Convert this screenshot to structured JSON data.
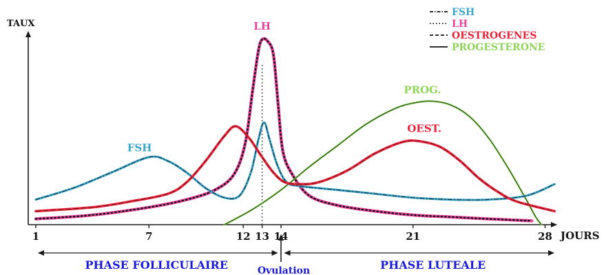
{
  "chart_data": {
    "type": "line",
    "ylabel": "TAUX",
    "xlabel": "JOURS",
    "xlim": [
      0.6,
      28.6
    ],
    "ylim": [
      0,
      100
    ],
    "x_ticks": [
      1,
      7,
      12,
      13,
      14,
      21,
      28
    ],
    "grid": false,
    "legend_position": "top-right",
    "legend": [
      {
        "label": "FSH",
        "color": "#3aa7c9",
        "line_style": "dash-dot"
      },
      {
        "label": "LH",
        "color": "#e8439a",
        "line_style": "dotted"
      },
      {
        "label": "OESTROGENES",
        "color": "#e8243a",
        "line_style": "dashed"
      },
      {
        "label": "PROGESTERONE",
        "color": "#8fd65a",
        "line_style": "solid"
      }
    ],
    "series": [
      {
        "key": "fsh",
        "curve_label": "FSH",
        "color": "#3aa7c9",
        "x": [
          1,
          3,
          5,
          7,
          8,
          9,
          10,
          11,
          11.8,
          12.4,
          12.8,
          13.1,
          13.4,
          13.8,
          14.3,
          15,
          17,
          19,
          21,
          23,
          25,
          27,
          28.5
        ],
        "y": [
          13,
          19,
          27,
          35,
          33,
          27,
          19,
          14,
          15,
          27,
          44,
          53,
          44,
          31,
          22,
          20,
          18,
          16,
          14,
          13,
          13,
          15,
          21
        ]
      },
      {
        "key": "lh",
        "curve_label": "LH",
        "color": "#e8439a",
        "x": [
          1,
          4,
          7,
          9,
          10.5,
          11.5,
          12.1,
          12.5,
          12.8,
          13,
          13.3,
          13.6,
          13.85,
          14.1,
          14.6,
          15.5,
          17,
          19,
          21,
          23,
          25,
          27.3
        ],
        "y": [
          3,
          5,
          9,
          13,
          18,
          26,
          42,
          70,
          90,
          96,
          95,
          88,
          62,
          38,
          26,
          15,
          10,
          7,
          5,
          4,
          3,
          2
        ]
      },
      {
        "key": "oest",
        "curve_label": "OEST.",
        "color": "#e8243a",
        "x": [
          1,
          4,
          6,
          8,
          9,
          10,
          11,
          11.6,
          12.3,
          13,
          13.6,
          14.2,
          15,
          16,
          17.5,
          19,
          20.5,
          21.5,
          22.5,
          23.5,
          24.5,
          25.5,
          26.5,
          28.5
        ],
        "y": [
          7,
          9,
          12,
          16,
          22,
          33,
          46,
          51,
          45,
          35,
          27,
          22,
          21,
          22,
          28,
          37,
          43,
          43,
          40,
          33,
          24,
          17,
          12,
          7
        ]
      },
      {
        "key": "prog",
        "curve_label": "PROG.",
        "color": "#8fd65a",
        "x": [
          11,
          12.5,
          14,
          15.5,
          17,
          18.5,
          20,
          21,
          22,
          23,
          24,
          25,
          26,
          27,
          27.5,
          27.8
        ],
        "y": [
          0,
          8,
          18,
          30,
          41,
          52,
          60,
          63,
          64,
          62,
          56,
          45,
          30,
          13,
          4,
          0
        ]
      }
    ],
    "annotations": {
      "ovulation_day": 14,
      "lh_peak_day": 13
    },
    "phases": [
      {
        "key": "follicular",
        "label": "PHASE FOLLICULAIRE",
        "from": 1,
        "to": 13.8
      },
      {
        "key": "ovulation",
        "label": "Ovulation",
        "at": 14
      },
      {
        "key": "luteal",
        "label": "PHASE LUTEALE",
        "from": 14.2,
        "to": 28.6
      }
    ]
  }
}
